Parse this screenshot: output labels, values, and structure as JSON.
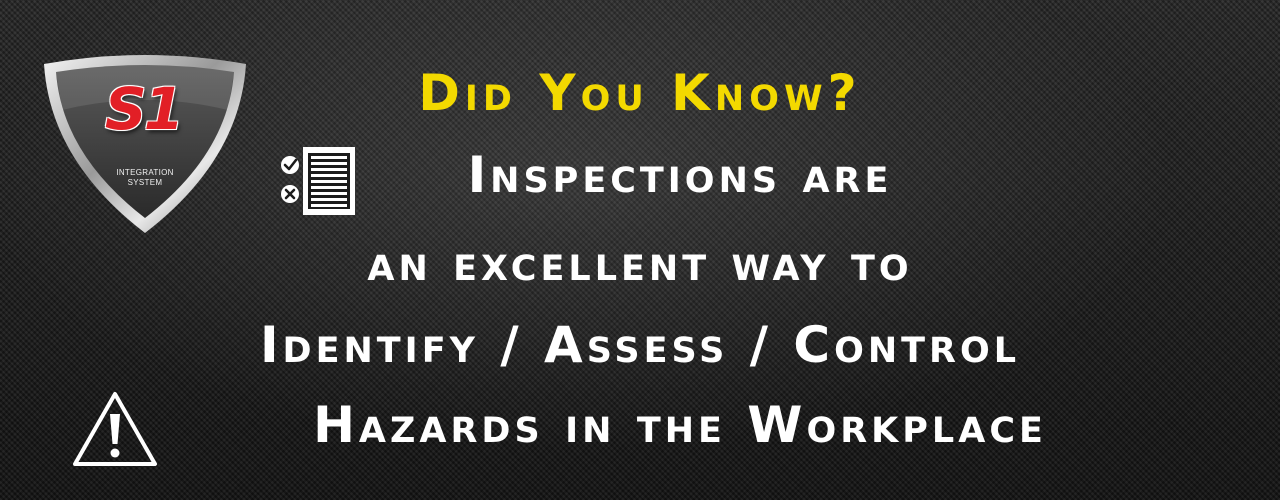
{
  "logo": {
    "mark": "S1",
    "caption_line1": "INTEGRATION",
    "caption_line2": "SYSTEM"
  },
  "headline": "Did You Know?",
  "lines": [
    "Inspections are",
    "an excellent way to",
    "Identify / Assess / Control",
    "Hazards in the Workplace"
  ],
  "icons": {
    "checklist": "checklist-icon",
    "warning": "warning-icon"
  },
  "colors": {
    "headline": "#f3d900",
    "body_text": "#ffffff",
    "logo_red": "#e21f26",
    "background": "#1b1b1b"
  }
}
